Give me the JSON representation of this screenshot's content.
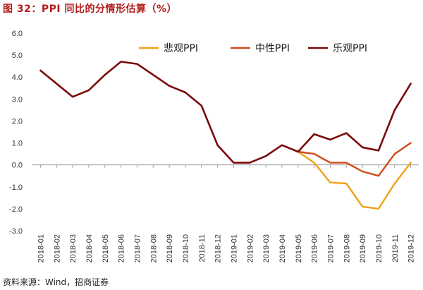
{
  "figure_title": "图 32：PPI 同比的分情形估算（%）",
  "source_note": "资料来源：Wind，招商证券",
  "chart_data": {
    "type": "line",
    "title": "",
    "xlabel": "",
    "ylabel": "",
    "ylim": [
      -3.0,
      6.0
    ],
    "yticks": [
      "6.0",
      "5.0",
      "4.0",
      "3.0",
      "2.0",
      "1.0",
      "0.0",
      "-1.0",
      "-2.0",
      "-3.0"
    ],
    "grid": false,
    "legend_position": "top-right",
    "categories": [
      "2018-01",
      "2018-02",
      "2018-03",
      "2018-04",
      "2018-05",
      "2018-06",
      "2018-07",
      "2018-08",
      "2018-09",
      "2018-10",
      "2018-11",
      "2018-12",
      "2019-01",
      "2019-02",
      "2019-03",
      "2019-04",
      "2019-05",
      "2019-06",
      "2019-07",
      "2019-08",
      "2019-09",
      "2019-10",
      "2019-11",
      "2019-12"
    ],
    "series": [
      {
        "name": "悲观PPI",
        "color": "#f0a018",
        "values": [
          null,
          null,
          null,
          null,
          null,
          null,
          null,
          null,
          null,
          null,
          null,
          null,
          null,
          null,
          null,
          null,
          0.6,
          0.1,
          -0.8,
          -0.85,
          -1.9,
          -2.0,
          -0.85,
          0.1
        ]
      },
      {
        "name": "中性PPI",
        "color": "#d04a1a",
        "values": [
          null,
          null,
          null,
          null,
          null,
          null,
          null,
          null,
          null,
          null,
          null,
          null,
          null,
          null,
          null,
          null,
          0.6,
          0.5,
          0.1,
          0.1,
          -0.3,
          -0.5,
          0.5,
          1.0
        ]
      },
      {
        "name": "乐观PPI",
        "color": "#7a0a0a",
        "values": [
          4.3,
          3.7,
          3.1,
          3.4,
          4.1,
          4.7,
          4.6,
          4.1,
          3.6,
          3.3,
          2.7,
          0.9,
          0.1,
          0.1,
          0.4,
          0.9,
          0.6,
          1.4,
          1.15,
          1.45,
          0.8,
          0.65,
          2.5,
          3.7
        ]
      }
    ]
  }
}
